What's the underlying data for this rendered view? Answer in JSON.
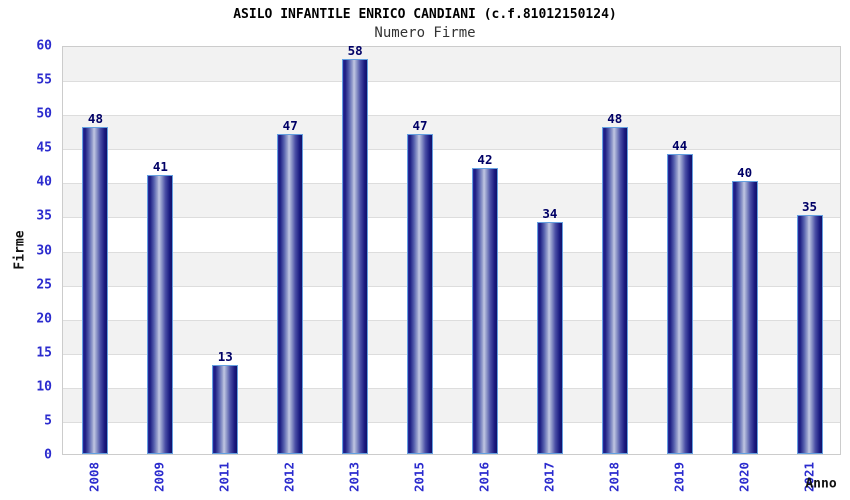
{
  "header": {
    "title": "ASILO INFANTILE ENRICO CANDIANI (c.f.81012150124)",
    "subtitle": "Numero Firme"
  },
  "chart_data": {
    "type": "bar",
    "title": "ASILO INFANTILE ENRICO CANDIANI (c.f.81012150124)",
    "subtitle": "Numero Firme",
    "xlabel": "Anno",
    "ylabel": "Firme",
    "categories": [
      "2008",
      "2009",
      "2011",
      "2012",
      "2013",
      "2015",
      "2016",
      "2017",
      "2018",
      "2019",
      "2020",
      "2021"
    ],
    "values": [
      48,
      41,
      13,
      47,
      58,
      47,
      42,
      34,
      48,
      44,
      40,
      35
    ],
    "ylim": [
      0,
      60
    ],
    "ytick_step": 5,
    "legend": "none",
    "grid": "horizontal-bands-alternating",
    "colors": {
      "bar_dark": "#1a1a80",
      "bar_light": "#c2c7e2",
      "bar_border": "#64a0e0",
      "tick_label": "#2b2bce",
      "value_label": "#000066",
      "band_gray": "#f2f2f2",
      "band_white": "#ffffff",
      "plot_border": "#cccccc",
      "title": "#000000",
      "subtitle": "#333333"
    }
  }
}
